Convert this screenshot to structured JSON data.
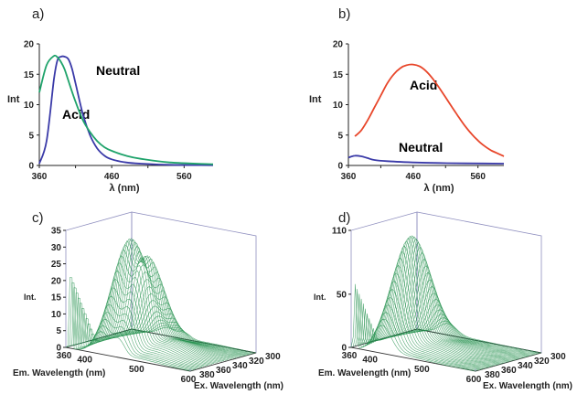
{
  "panels": {
    "a": {
      "label": "a)",
      "ylabel": "Int",
      "xlabel": "λ  (nm)",
      "xticks": [
        "360",
        "460",
        "560"
      ],
      "yticks": [
        "0",
        "5",
        "10",
        "15",
        "20"
      ]
    },
    "b": {
      "label": "b)",
      "ylabel": "Int",
      "xlabel": "λ  (nm)",
      "xticks": [
        "360",
        "460",
        "560"
      ],
      "yticks": [
        "0",
        "5",
        "10",
        "15",
        "20"
      ]
    },
    "c": {
      "label": "c)",
      "zlabel": "Int.",
      "zticks": [
        "0",
        "5",
        "10",
        "15",
        "20",
        "25",
        "30",
        "35"
      ],
      "emticks": [
        "360",
        "400",
        "500",
        "600"
      ],
      "exticks": [
        "300",
        "320",
        "340",
        "360",
        "380"
      ],
      "emlabel": "Em. Wavelength (nm)",
      "exlabel": "Ex. Wavelength (nm)"
    },
    "d": {
      "label": "d)",
      "zlabel": "Int.",
      "zticks": [
        "0",
        "50",
        "110"
      ],
      "emticks": [
        "360",
        "400",
        "500",
        "600"
      ],
      "exticks": [
        "300",
        "320",
        "340",
        "360",
        "380"
      ],
      "emlabel": "Em. Wavelength (nm)",
      "exlabel": "Ex. Wavelength (nm)"
    }
  },
  "colors": {
    "neutral": "#3a3aa8",
    "acid_a": "#1fa36b",
    "acid_b": "#e8462a",
    "mesh": "#1f8f4a",
    "frame": "#8f8fbf"
  },
  "chart_data": [
    {
      "type": "line",
      "xlim": [
        360,
        600
      ],
      "ylim": [
        0,
        20
      ],
      "series": [
        {
          "name": "Neutral",
          "color": "#3a3aa8",
          "x": [
            360,
            370,
            380,
            385,
            390,
            395,
            400,
            405,
            410,
            420,
            430,
            440,
            450,
            460,
            480,
            500,
            540,
            600
          ],
          "y": [
            0.3,
            4,
            14,
            17.3,
            17.9,
            17.9,
            17.5,
            16,
            13.5,
            8.5,
            5,
            2.8,
            1.6,
            1,
            0.5,
            0.3,
            0.1,
            0.05
          ]
        },
        {
          "name": "Acid",
          "color": "#1fa36b",
          "x": [
            360,
            370,
            380,
            385,
            390,
            395,
            400,
            410,
            420,
            430,
            440,
            450,
            460,
            480,
            500,
            540,
            600
          ],
          "y": [
            12,
            16.5,
            18,
            17.8,
            17,
            15.8,
            14,
            10.5,
            7.5,
            5.5,
            4,
            3,
            2.4,
            1.6,
            1.1,
            0.5,
            0.2
          ]
        }
      ]
    },
    {
      "type": "line",
      "xlim": [
        360,
        600
      ],
      "ylim": [
        0,
        20
      ],
      "series": [
        {
          "name": "Acid",
          "color": "#e8462a",
          "x": [
            370,
            380,
            390,
            400,
            410,
            420,
            430,
            440,
            450,
            460,
            470,
            480,
            490,
            500,
            510,
            520,
            530,
            540,
            550,
            560,
            570,
            580,
            590,
            600
          ],
          "y": [
            4.8,
            5.8,
            7.5,
            9.5,
            11.5,
            13.5,
            15,
            16,
            16.5,
            16.6,
            16.3,
            15.5,
            14.3,
            12.8,
            11.2,
            9.6,
            8,
            6.5,
            5.2,
            4.1,
            3.2,
            2.5,
            2,
            1.5
          ]
        },
        {
          "name": "Neutral",
          "color": "#3a3aa8",
          "x": [
            360,
            370,
            380,
            390,
            400,
            420,
            460,
            500,
            540,
            600
          ],
          "y": [
            1.3,
            1.6,
            1.5,
            1.2,
            0.9,
            0.7,
            0.5,
            0.4,
            0.35,
            0.3
          ]
        }
      ]
    },
    {
      "type": "surface",
      "em_range": [
        360,
        600
      ],
      "ex_range": [
        300,
        380
      ],
      "zlim": [
        0,
        35
      ],
      "peak_em": 430,
      "peak_int": 32
    },
    {
      "type": "surface",
      "em_range": [
        360,
        600
      ],
      "ex_range": [
        300,
        380
      ],
      "zlim": [
        0,
        110
      ],
      "peak_em": 420,
      "peak_int": 100
    }
  ]
}
